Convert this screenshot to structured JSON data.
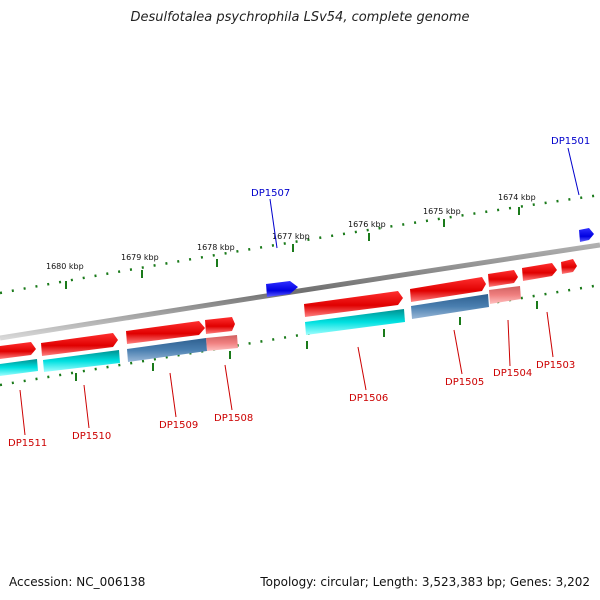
{
  "title": "Desulfotalea psychrophila LSv54, complete genome",
  "footer": {
    "accession": "Accession: NC_006138",
    "summary": "Topology: circular; Length: 3,523,383 bp; Genes: 3,202"
  },
  "colors": {
    "forward_gene": "#e60000",
    "reverse_blue": "#0000ee",
    "cds_cyan": "#00d8d8",
    "cds_steel": "#4a7fb0",
    "cds_pink": "#f08080",
    "backbone": "#808080",
    "tick": "#1a7a1a",
    "label_red": "#cc0000",
    "label_blue": "#0000cc"
  },
  "scale_labels": [
    "1674 kbp",
    "1675 kbp",
    "1676 kbp",
    "1677 kbp",
    "1678 kbp",
    "1679 kbp",
    "1680 kbp"
  ],
  "genes": [
    {
      "id": "DP1501",
      "strand": "top"
    },
    {
      "id": "DP1503",
      "strand": "forward"
    },
    {
      "id": "DP1504",
      "strand": "forward"
    },
    {
      "id": "DP1505",
      "strand": "forward"
    },
    {
      "id": "DP1506",
      "strand": "forward"
    },
    {
      "id": "DP1507",
      "strand": "top"
    },
    {
      "id": "DP1508",
      "strand": "forward"
    },
    {
      "id": "DP1509",
      "strand": "forward"
    },
    {
      "id": "DP1510",
      "strand": "forward"
    },
    {
      "id": "DP1511",
      "strand": "forward"
    }
  ]
}
